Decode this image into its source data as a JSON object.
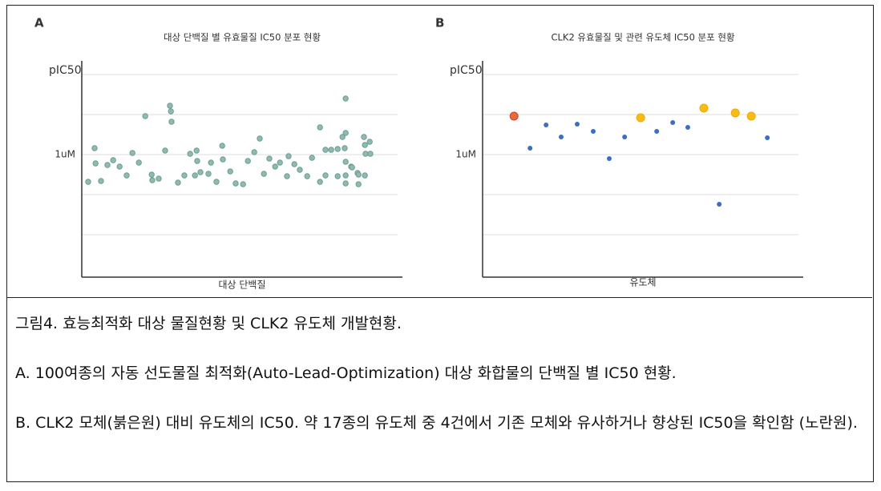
{
  "chart_data": [
    {
      "type": "scatter",
      "panel": "A",
      "title": "대상 단백질 별 유효물질 IC50 분포 현황",
      "y_label": "pIC50",
      "x_label": "대상 단백질",
      "color": "#8fbab1",
      "xlim": [
        0,
        100
      ],
      "ylim": [
        2.94,
        8.34
      ],
      "ygrid": [
        4,
        5,
        6,
        7,
        8
      ],
      "yticks": [
        {
          "value": 6,
          "label": "1uM"
        }
      ],
      "x": [
        2,
        4,
        4.3,
        6,
        8,
        9.8,
        11.8,
        14,
        15.8,
        17.8,
        19.8,
        21.8,
        22,
        24,
        26,
        27.5,
        27.8,
        28,
        30,
        32,
        33.8,
        35.3,
        35.8,
        36,
        37,
        39.5,
        40.3,
        42,
        43.8,
        44,
        46.3,
        48,
        50.3,
        51.8,
        53.8,
        55.5,
        56.8,
        58.5,
        60.3,
        61.8,
        64,
        64.5,
        66.3,
        68,
        70.3,
        71.8,
        74.3,
        74.3,
        76,
        76,
        77.8,
        79.8,
        79.8,
        81.3,
        82,
        82.3,
        82.3,
        82.3,
        82.3,
        82.3,
        84,
        84.3,
        86,
        86.3,
        86.3,
        88,
        88.3,
        88.3,
        88.5,
        89.8,
        90
      ],
      "values": [
        5.32,
        6.16,
        5.78,
        5.34,
        5.74,
        5.86,
        5.7,
        5.48,
        6.04,
        5.8,
        6.96,
        5.5,
        5.36,
        5.4,
        6.1,
        7.22,
        7.08,
        6.82,
        5.3,
        5.48,
        6.02,
        5.48,
        6.1,
        5.84,
        5.56,
        5.52,
        5.8,
        5.32,
        6.22,
        5.88,
        5.58,
        5.28,
        5.26,
        5.84,
        6.06,
        6.4,
        5.52,
        5.9,
        5.7,
        5.8,
        5.46,
        5.96,
        5.76,
        5.62,
        5.46,
        5.92,
        6.68,
        5.32,
        5.48,
        6.12,
        6.12,
        6.14,
        5.46,
        6.44,
        6.16,
        7.4,
        6.54,
        5.82,
        5.48,
        5.28,
        5.7,
        5.68,
        5.54,
        5.5,
        5.26,
        6.44,
        6.24,
        5.48,
        6.02,
        6.32,
        6.02
      ]
    },
    {
      "type": "scatter",
      "panel": "B",
      "title": "CLK2 유효물질 및 관련 유도체 IC50 분포 현황",
      "y_label": "pIC50",
      "x_label": "유도체",
      "color": "#3a6fc4",
      "xlim": [
        0,
        100
      ],
      "ylim": [
        2.94,
        8.34
      ],
      "ygrid": [
        4,
        5,
        6,
        7,
        8
      ],
      "yticks": [
        {
          "value": 6,
          "label": "1uM"
        }
      ],
      "x": [
        9.8,
        14.8,
        19.8,
        24.5,
        29.5,
        34.5,
        39.5,
        44.3,
        49.3,
        54.3,
        59.3,
        64,
        69,
        73.8,
        78.8,
        83.8,
        88.8
      ],
      "values": [
        6.96,
        6.16,
        6.74,
        6.44,
        6.76,
        6.58,
        5.9,
        6.44,
        6.92,
        6.58,
        6.8,
        6.68,
        7.16,
        4.76,
        7.04,
        6.96,
        6.42
      ],
      "point_colors": [
        "#ea6a3e",
        "#3a6fc4",
        "#3a6fc4",
        "#3a6fc4",
        "#3a6fc4",
        "#3a6fc4",
        "#3a6fc4",
        "#3a6fc4",
        "#f9bb16",
        "#3a6fc4",
        "#3a6fc4",
        "#3a6fc4",
        "#f9bb16",
        "#3a6fc4",
        "#f9bb16",
        "#f9bb16",
        "#3a6fc4"
      ]
    }
  ],
  "caption": {
    "title": "그림4. 효능최적화 대상 물질현황 및 CLK2 유도체 개발현황.",
    "paragraphs": [
      "A. 100여종의 자동 선도물질 최적화(Auto-Lead-Optimization) 대상 화합물의 단백질 별 IC50 현황.",
      "B. CLK2 모체(붉은원) 대비 유도체의 IC50. 약 17종의 유도체 중 4건에서 기존 모체와 유사하거나 향상된 IC50을 확인함 (노란원)."
    ]
  }
}
